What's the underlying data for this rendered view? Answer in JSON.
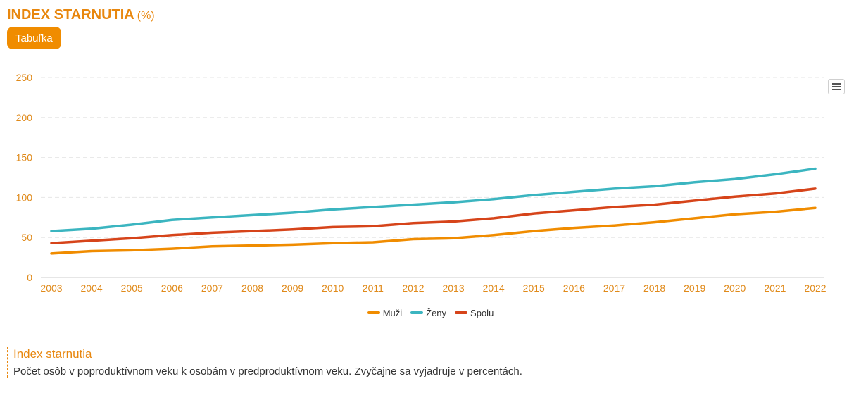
{
  "header": {
    "title": "INDEX STARNUTIA",
    "unit": "(%)",
    "table_button": "Tabuľka"
  },
  "chart_data": {
    "type": "line",
    "x": [
      "2003",
      "2004",
      "2005",
      "2006",
      "2007",
      "2008",
      "2009",
      "2010",
      "2011",
      "2012",
      "2013",
      "2014",
      "2015",
      "2016",
      "2017",
      "2018",
      "2019",
      "2020",
      "2021",
      "2022"
    ],
    "ylim": [
      0,
      250
    ],
    "yticks": [
      0,
      50,
      100,
      150,
      200,
      250
    ],
    "grid": true,
    "legend_position": "bottom-center",
    "series": [
      {
        "name": "Muži",
        "color": "#f08c00",
        "values": [
          30,
          33,
          34,
          36,
          39,
          40,
          41,
          43,
          44,
          48,
          49,
          53,
          58,
          62,
          65,
          69,
          74,
          79,
          82,
          87
        ]
      },
      {
        "name": "Ženy",
        "color": "#3bb5c0",
        "values": [
          58,
          61,
          66,
          72,
          75,
          78,
          81,
          85,
          88,
          91,
          94,
          98,
          103,
          107,
          111,
          114,
          119,
          123,
          129,
          136
        ]
      },
      {
        "name": "Spolu",
        "color": "#d6441a",
        "values": [
          43,
          46,
          49,
          53,
          56,
          58,
          60,
          63,
          64,
          68,
          70,
          74,
          80,
          84,
          88,
          91,
          96,
          101,
          105,
          111
        ]
      }
    ]
  },
  "note": {
    "title": "Index starnutia",
    "text": "Počet osôb v poproduktívnom veku k osobám v predproduktívnom veku. Zvyčajne sa vyjadruje v percentách."
  }
}
